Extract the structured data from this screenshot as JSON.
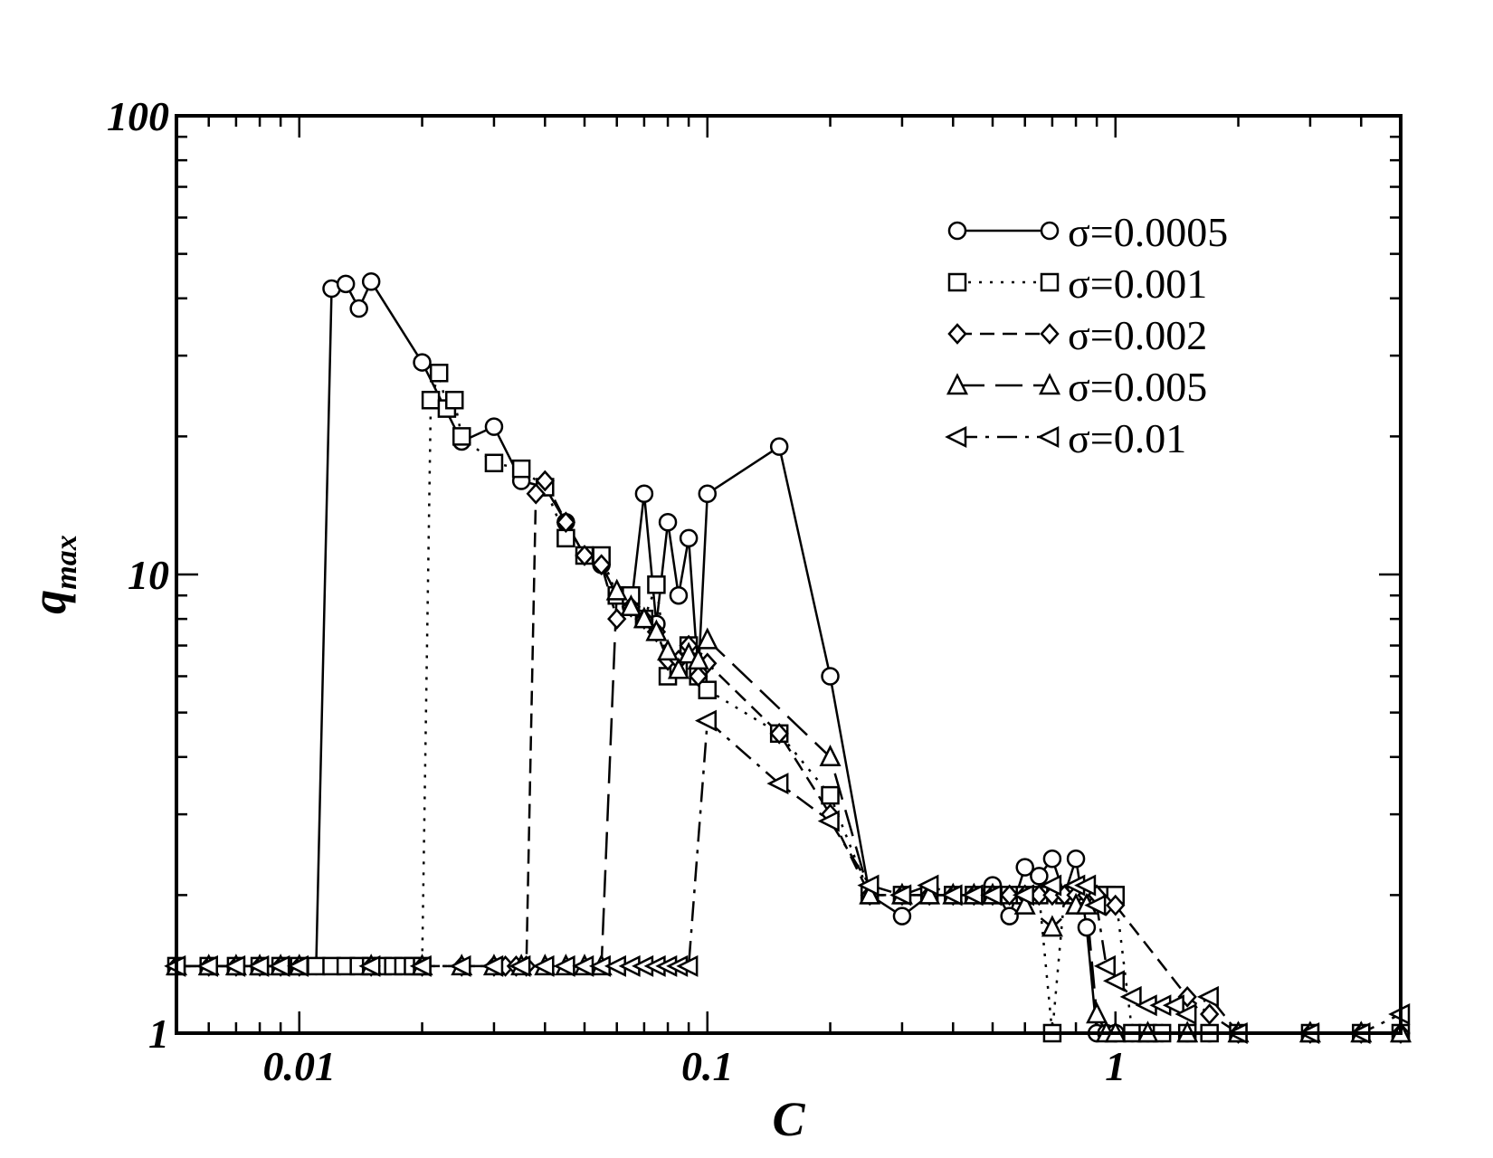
{
  "chart_data": {
    "type": "line",
    "xlabel": "C",
    "ylabel_main": "q",
    "ylabel_sub": "max",
    "xscale": "log",
    "yscale": "log",
    "xlim": [
      0.005,
      5
    ],
    "ylim": [
      1,
      100
    ],
    "x_ticks": [
      {
        "value": 0.01,
        "label": "0.01"
      },
      {
        "value": 0.1,
        "label": "0.1"
      },
      {
        "value": 1,
        "label": "1"
      }
    ],
    "y_ticks": [
      {
        "value": 1,
        "label": "1"
      },
      {
        "value": 10,
        "label": "10"
      },
      {
        "value": 100,
        "label": "100"
      }
    ],
    "grid": false,
    "legend_position": "top-right",
    "series": [
      {
        "name": "σ=0.0005",
        "marker": "circle",
        "dash": "solid",
        "x": [
          0.005,
          0.006,
          0.007,
          0.008,
          0.009,
          0.01,
          0.011,
          0.012,
          0.013,
          0.014,
          0.015,
          0.02,
          0.025,
          0.03,
          0.035,
          0.04,
          0.045,
          0.05,
          0.055,
          0.06,
          0.065,
          0.07,
          0.075,
          0.08,
          0.085,
          0.09,
          0.095,
          0.1,
          0.15,
          0.2,
          0.25,
          0.3,
          0.35,
          0.4,
          0.45,
          0.5,
          0.55,
          0.6,
          0.65,
          0.7,
          0.75,
          0.8,
          0.85,
          0.9,
          0.95,
          1,
          1.1,
          1.2,
          1.3,
          1.5,
          1.7,
          2,
          3,
          4,
          5
        ],
        "y": [
          1.4,
          1.4,
          1.4,
          1.4,
          1.4,
          1.4,
          1.4,
          42,
          43,
          38,
          43.5,
          29,
          19.5,
          21,
          16,
          15.5,
          13,
          11,
          10.5,
          9,
          8.5,
          15,
          7.8,
          13,
          9,
          12,
          6,
          15,
          19,
          6,
          2,
          1.8,
          2,
          2,
          2,
          2.1,
          1.8,
          2.3,
          2.2,
          2.4,
          2,
          2.4,
          1.7,
          1,
          1,
          1,
          1,
          1,
          1,
          1,
          1,
          1,
          1,
          1,
          1
        ]
      },
      {
        "name": "σ=0.001",
        "marker": "square",
        "dash": "dotted",
        "x": [
          0.005,
          0.006,
          0.007,
          0.008,
          0.009,
          0.01,
          0.011,
          0.012,
          0.013,
          0.014,
          0.015,
          0.016,
          0.017,
          0.018,
          0.019,
          0.02,
          0.021,
          0.022,
          0.023,
          0.024,
          0.025,
          0.03,
          0.035,
          0.04,
          0.045,
          0.05,
          0.055,
          0.06,
          0.065,
          0.07,
          0.075,
          0.08,
          0.085,
          0.09,
          0.095,
          0.1,
          0.15,
          0.2,
          0.25,
          0.3,
          0.35,
          0.4,
          0.45,
          0.5,
          0.55,
          0.6,
          0.65,
          0.7,
          0.75,
          0.8,
          0.85,
          0.9,
          0.95,
          1,
          1.1,
          1.2,
          1.3,
          1.5,
          1.7,
          2,
          3,
          4,
          5
        ],
        "y": [
          1.4,
          1.4,
          1.4,
          1.4,
          1.4,
          1.4,
          1.4,
          1.4,
          1.4,
          1.4,
          1.4,
          1.4,
          1.4,
          1.4,
          1.4,
          1.4,
          24,
          27.5,
          23,
          24,
          20,
          17.5,
          17,
          15.5,
          12,
          11,
          11,
          9,
          9,
          8,
          9.5,
          6,
          6.2,
          7,
          6,
          5.6,
          4.5,
          3.3,
          2,
          2,
          2,
          2,
          2,
          2,
          2,
          2,
          2,
          1,
          2,
          2,
          2,
          2,
          2,
          2,
          1,
          1,
          1,
          1,
          1,
          1,
          1,
          1,
          1
        ]
      },
      {
        "name": "σ=0.002",
        "marker": "diamond",
        "dash": "dashed",
        "x": [
          0.005,
          0.006,
          0.007,
          0.008,
          0.009,
          0.01,
          0.015,
          0.02,
          0.025,
          0.03,
          0.032,
          0.034,
          0.036,
          0.038,
          0.04,
          0.045,
          0.05,
          0.055,
          0.06,
          0.065,
          0.07,
          0.075,
          0.08,
          0.085,
          0.09,
          0.095,
          0.1,
          0.15,
          0.2,
          0.25,
          0.3,
          0.35,
          0.4,
          0.45,
          0.5,
          0.55,
          0.6,
          0.65,
          0.7,
          0.75,
          0.8,
          0.85,
          0.9,
          0.95,
          1,
          1.5,
          1.7,
          2,
          3,
          4,
          5
        ],
        "y": [
          1.4,
          1.4,
          1.4,
          1.4,
          1.4,
          1.4,
          1.4,
          1.4,
          1.4,
          1.4,
          1.4,
          1.4,
          1.4,
          15,
          16,
          13,
          11,
          10.5,
          8,
          8.5,
          8,
          7.5,
          6.5,
          6.5,
          7,
          6,
          6.4,
          4.5,
          3,
          2,
          2,
          2,
          2,
          2,
          2,
          2,
          2,
          2,
          2,
          2,
          2,
          2,
          2,
          1.9,
          1.9,
          1.2,
          1.1,
          1,
          1,
          1,
          1
        ]
      },
      {
        "name": "σ=0.005",
        "marker": "triangle",
        "dash": "longdash",
        "x": [
          0.005,
          0.006,
          0.007,
          0.008,
          0.009,
          0.01,
          0.015,
          0.02,
          0.025,
          0.03,
          0.035,
          0.04,
          0.045,
          0.05,
          0.055,
          0.06,
          0.065,
          0.07,
          0.075,
          0.08,
          0.085,
          0.09,
          0.095,
          0.1,
          0.2,
          0.25,
          0.3,
          0.35,
          0.4,
          0.45,
          0.5,
          0.6,
          0.7,
          0.8,
          0.85,
          0.9,
          0.95,
          1,
          1.2,
          1.5,
          2,
          3,
          4,
          5
        ],
        "y": [
          1.4,
          1.4,
          1.4,
          1.4,
          1.4,
          1.4,
          1.4,
          1.4,
          1.4,
          1.4,
          1.4,
          1.4,
          1.4,
          1.4,
          1.4,
          9.2,
          8.5,
          8,
          7.5,
          6.8,
          6.2,
          6.7,
          6.5,
          7.2,
          4,
          2,
          2,
          2,
          2,
          2,
          2,
          1.9,
          1.7,
          1.9,
          1.9,
          1.1,
          1,
          1,
          1,
          1,
          1,
          1,
          1,
          1
        ]
      },
      {
        "name": "σ=0.01",
        "marker": "triangle-left",
        "dash": "dashdot",
        "x": [
          0.005,
          0.006,
          0.007,
          0.008,
          0.009,
          0.01,
          0.015,
          0.02,
          0.025,
          0.03,
          0.035,
          0.04,
          0.045,
          0.05,
          0.055,
          0.06,
          0.065,
          0.07,
          0.075,
          0.08,
          0.085,
          0.09,
          0.1,
          0.15,
          0.2,
          0.25,
          0.3,
          0.35,
          0.4,
          0.45,
          0.5,
          0.6,
          0.7,
          0.8,
          0.85,
          0.9,
          0.95,
          1,
          1.1,
          1.2,
          1.3,
          1.4,
          1.5,
          1.7,
          2,
          3,
          4,
          5
        ],
        "y": [
          1.4,
          1.4,
          1.4,
          1.4,
          1.4,
          1.4,
          1.4,
          1.4,
          1.4,
          1.4,
          1.4,
          1.4,
          1.4,
          1.4,
          1.4,
          1.4,
          1.4,
          1.4,
          1.4,
          1.4,
          1.4,
          1.4,
          4.8,
          3.5,
          2.9,
          2.1,
          2,
          2.1,
          2,
          2,
          2,
          2,
          2.1,
          2.1,
          2.1,
          1.9,
          1.4,
          1.3,
          1.2,
          1.15,
          1.15,
          1.15,
          1.1,
          1.2,
          1,
          1,
          1,
          1.1
        ]
      }
    ]
  }
}
